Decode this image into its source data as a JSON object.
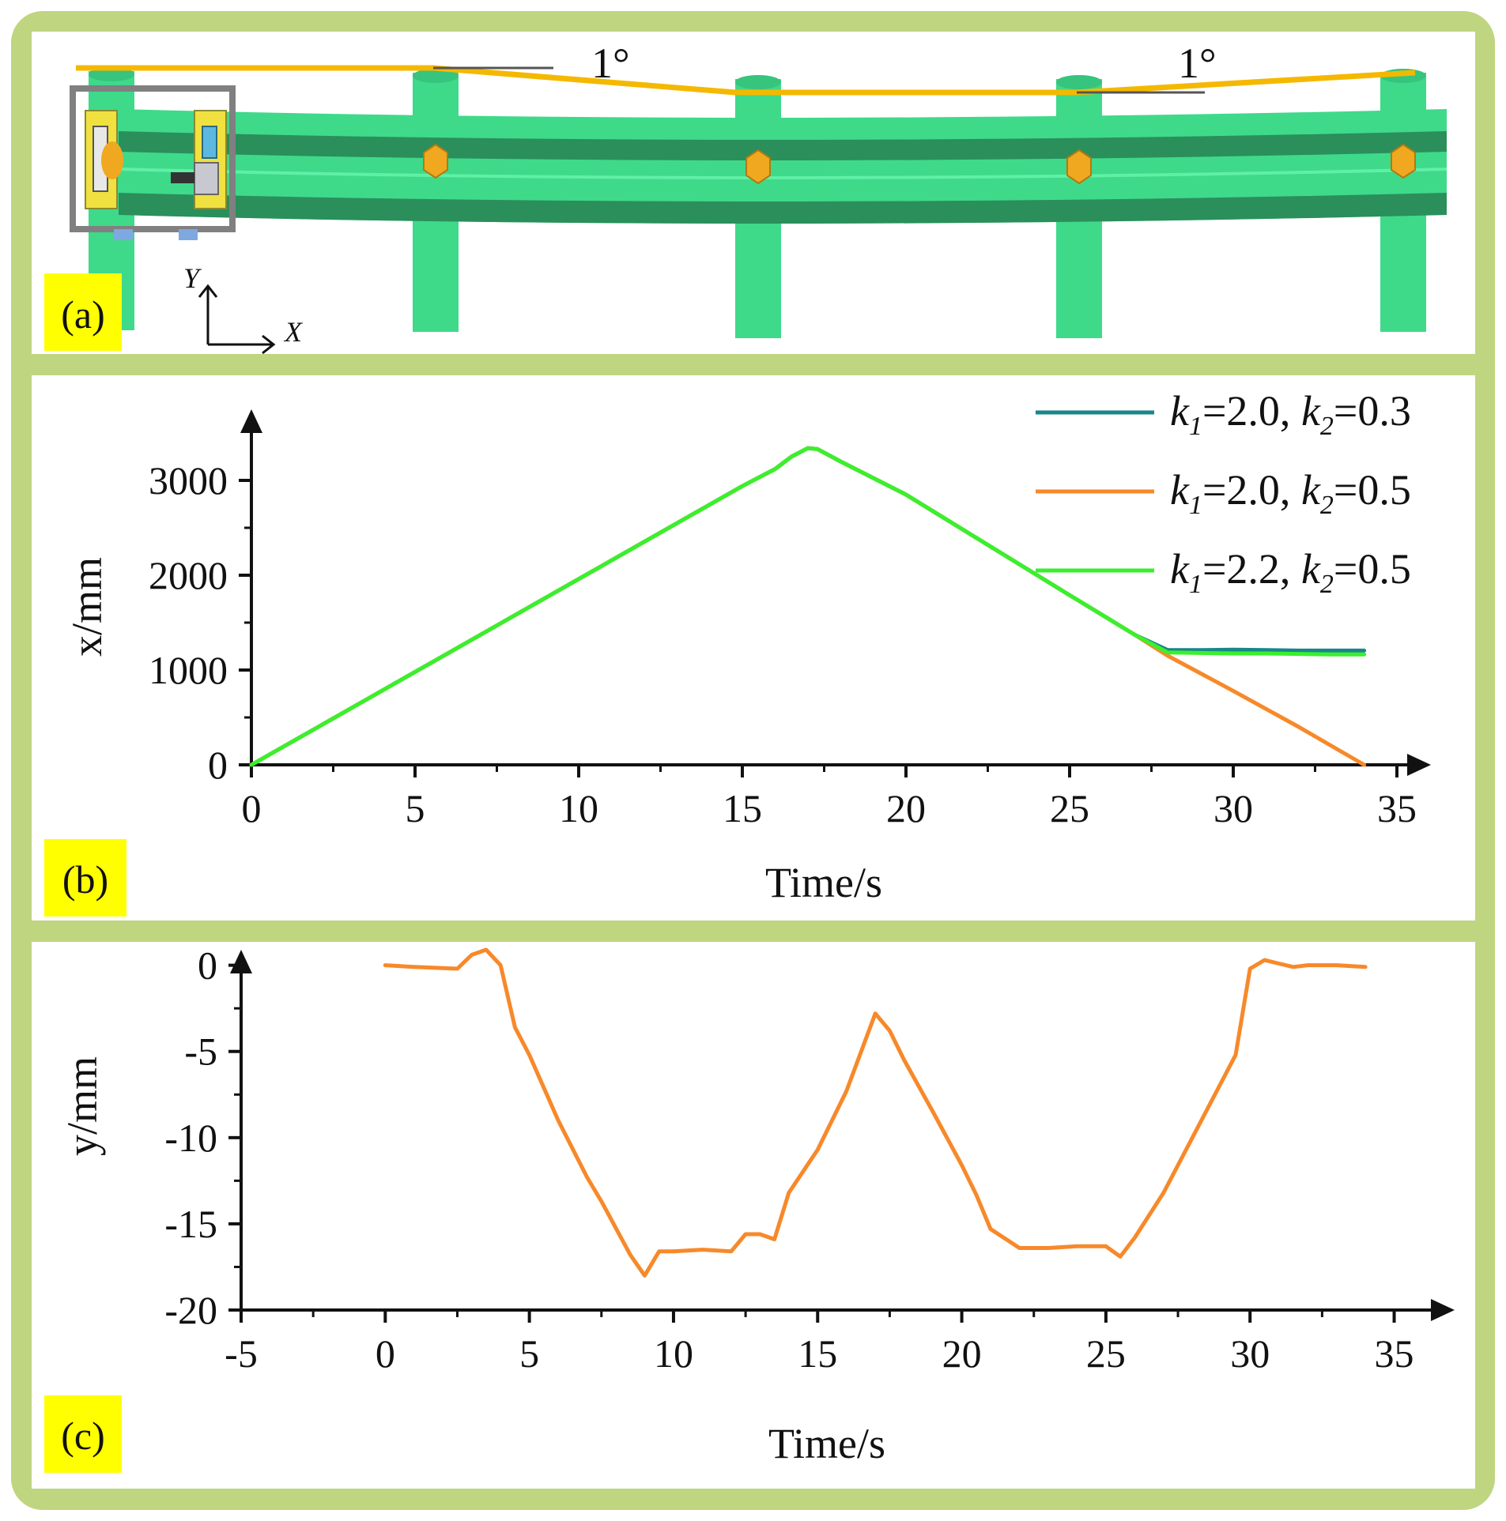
{
  "panels": {
    "a": {
      "label": "(a)",
      "angle_left": "1°",
      "angle_right": "1°",
      "axis_x": "X",
      "axis_y": "Y"
    },
    "b": {
      "label": "(b)"
    },
    "c": {
      "label": "(c)"
    }
  },
  "colors": {
    "frame": "#bfd580",
    "tag_bg": "#ffff00",
    "guardrail": "#3fd98a",
    "guardrail_dark": "#2a8f5b",
    "path": "#f5b800",
    "bolt": "#f0a820",
    "series_teal": "#17878a",
    "series_orange": "#f7892a",
    "series_green": "#3af02c"
  },
  "chart_data": [
    {
      "type": "line",
      "panel": "b",
      "xlabel": "Time/s",
      "ylabel": "x/mm",
      "xlim": [
        0,
        35
      ],
      "ylim": [
        0,
        3400
      ],
      "xticks": [
        0,
        5,
        10,
        15,
        20,
        25,
        30,
        35
      ],
      "yticks": [
        0,
        1000,
        2000,
        3000
      ],
      "grid": false,
      "legend": "top-right",
      "legend_labels": [
        {
          "a": "k",
          "as": "1",
          "b": "=2.0, ",
          "c": "k",
          "cs": "2",
          "d": "=0.3"
        },
        {
          "a": "k",
          "as": "1",
          "b": "=2.0, ",
          "c": "k",
          "cs": "2",
          "d": "=0.5"
        },
        {
          "a": "k",
          "as": "1",
          "b": "=2.2, ",
          "c": "k",
          "cs": "2",
          "d": "=0.5"
        }
      ],
      "series": [
        {
          "name": "k1=2.0, k2=0.3",
          "color": "#17878a",
          "points": [
            [
              0,
              0
            ],
            [
              5,
              980
            ],
            [
              10,
              1960
            ],
            [
              15,
              2940
            ],
            [
              16,
              3120
            ],
            [
              16.5,
              3250
            ],
            [
              17,
              3340
            ],
            [
              17.3,
              3330
            ],
            [
              18,
              3200
            ],
            [
              20,
              2850
            ],
            [
              25,
              1790
            ],
            [
              27,
              1370
            ],
            [
              28,
              1210
            ],
            [
              29,
              1210
            ],
            [
              30,
              1215
            ],
            [
              31,
              1210
            ],
            [
              32,
              1205
            ],
            [
              33,
              1205
            ],
            [
              34,
              1205
            ]
          ]
        },
        {
          "name": "k1=2.0, k2=0.5",
          "color": "#f7892a",
          "points": [
            [
              0,
              0
            ],
            [
              5,
              980
            ],
            [
              10,
              1960
            ],
            [
              15,
              2940
            ],
            [
              16,
              3120
            ],
            [
              16.5,
              3250
            ],
            [
              17,
              3340
            ],
            [
              17.3,
              3330
            ],
            [
              18,
              3200
            ],
            [
              20,
              2850
            ],
            [
              25,
              1790
            ],
            [
              27,
              1370
            ],
            [
              28,
              1150
            ],
            [
              30,
              780
            ],
            [
              32,
              400
            ],
            [
              34,
              0
            ]
          ]
        },
        {
          "name": "k1=2.2, k2=0.5",
          "color": "#3af02c",
          "points": [
            [
              0,
              0
            ],
            [
              5,
              980
            ],
            [
              10,
              1960
            ],
            [
              15,
              2940
            ],
            [
              16,
              3120
            ],
            [
              16.5,
              3250
            ],
            [
              17,
              3340
            ],
            [
              17.3,
              3330
            ],
            [
              18,
              3200
            ],
            [
              20,
              2850
            ],
            [
              25,
              1790
            ],
            [
              27,
              1370
            ],
            [
              28,
              1185
            ],
            [
              29,
              1180
            ],
            [
              30,
              1175
            ],
            [
              31,
              1175
            ],
            [
              32,
              1170
            ],
            [
              33,
              1165
            ],
            [
              34,
              1165
            ]
          ]
        }
      ]
    },
    {
      "type": "line",
      "panel": "c",
      "xlabel": "Time/s",
      "ylabel": "y/mm",
      "xlim": [
        -5,
        36
      ],
      "ylim": [
        -20,
        2
      ],
      "xticks": [
        -5,
        0,
        5,
        10,
        15,
        20,
        25,
        30,
        35
      ],
      "yticks": [
        0,
        -5,
        -10,
        -15,
        -20
      ],
      "grid": false,
      "series": [
        {
          "color": "#f7892a",
          "points": [
            [
              0,
              0
            ],
            [
              1,
              -0.1
            ],
            [
              2.5,
              -0.2
            ],
            [
              3,
              0.6
            ],
            [
              3.5,
              0.9
            ],
            [
              4,
              0
            ],
            [
              4.5,
              -3.6
            ],
            [
              5,
              -5.2
            ],
            [
              6,
              -9
            ],
            [
              7,
              -12.3
            ],
            [
              7.5,
              -13.7
            ],
            [
              8.5,
              -16.8
            ],
            [
              9,
              -18
            ],
            [
              9.5,
              -16.6
            ],
            [
              10,
              -16.6
            ],
            [
              11,
              -16.5
            ],
            [
              12,
              -16.6
            ],
            [
              12.5,
              -15.6
            ],
            [
              13,
              -15.6
            ],
            [
              13.5,
              -15.9
            ],
            [
              14,
              -13.2
            ],
            [
              15,
              -10.7
            ],
            [
              16,
              -7.3
            ],
            [
              17,
              -2.8
            ],
            [
              17.5,
              -3.8
            ],
            [
              18,
              -5.5
            ],
            [
              19,
              -8.5
            ],
            [
              20,
              -11.6
            ],
            [
              20.5,
              -13.3
            ],
            [
              21,
              -15.3
            ],
            [
              22,
              -16.4
            ],
            [
              23,
              -16.4
            ],
            [
              24,
              -16.3
            ],
            [
              25,
              -16.3
            ],
            [
              25.5,
              -16.9
            ],
            [
              26,
              -15.8
            ],
            [
              27,
              -13.2
            ],
            [
              28,
              -10
            ],
            [
              29,
              -6.8
            ],
            [
              29.5,
              -5.2
            ],
            [
              30,
              -0.2
            ],
            [
              30.5,
              0.3
            ],
            [
              31,
              0.1
            ],
            [
              31.5,
              -0.1
            ],
            [
              32,
              0
            ],
            [
              33,
              0
            ],
            [
              34,
              -0.1
            ]
          ]
        }
      ]
    }
  ]
}
